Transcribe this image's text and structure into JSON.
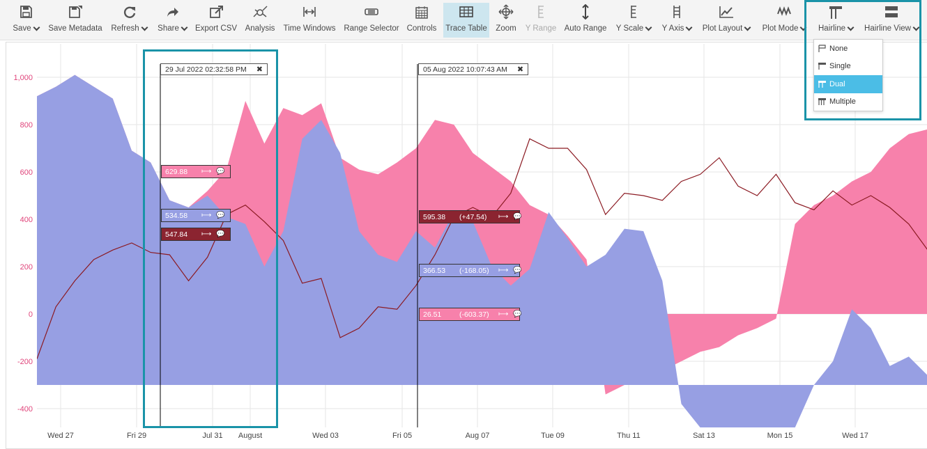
{
  "toolbar": {
    "buttons": [
      {
        "id": "save",
        "label": "Save",
        "icon": "floppy-icon",
        "caret": true
      },
      {
        "id": "save-metadata",
        "label": "Save Metadata",
        "icon": "floppy-tag-icon",
        "caret": false
      },
      {
        "id": "refresh",
        "label": "Refresh",
        "icon": "refresh-icon",
        "caret": true
      },
      {
        "id": "share",
        "label": "Share",
        "icon": "share-arrow-icon",
        "caret": true
      },
      {
        "id": "export-csv",
        "label": "Export CSV",
        "icon": "export-icon",
        "caret": false
      },
      {
        "id": "analysis",
        "label": "Analysis",
        "icon": "analysis-icon",
        "caret": false
      },
      {
        "id": "time-windows",
        "label": "Time Windows",
        "icon": "time-windows-icon",
        "caret": false
      },
      {
        "id": "range-selector",
        "label": "Range Selector",
        "icon": "range-selector-icon",
        "caret": false
      },
      {
        "id": "controls",
        "label": "Controls",
        "icon": "calendar-icon",
        "caret": false
      },
      {
        "id": "trace-table",
        "label": "Trace Table",
        "icon": "table-icon",
        "caret": false,
        "active": true
      },
      {
        "id": "zoom",
        "label": "Zoom",
        "icon": "zoom-move-icon",
        "caret": false
      },
      {
        "id": "y-range",
        "label": "Y Range",
        "icon": "y-range-icon",
        "caret": false,
        "disabled": true
      },
      {
        "id": "auto-range",
        "label": "Auto Range",
        "icon": "auto-range-icon",
        "caret": false
      },
      {
        "id": "y-scale",
        "label": "Y Scale",
        "icon": "y-scale-icon",
        "caret": true
      },
      {
        "id": "y-axis",
        "label": "Y Axis",
        "icon": "y-axis-icon",
        "caret": true
      },
      {
        "id": "plot-layout",
        "label": "Plot Layout",
        "icon": "plot-layout-icon",
        "caret": true
      },
      {
        "id": "plot-mode",
        "label": "Plot Mode",
        "icon": "plot-mode-icon",
        "caret": true
      },
      {
        "id": "hairline",
        "label": "Hairline",
        "icon": "hairline-icon",
        "caret": true
      },
      {
        "id": "hairline-view",
        "label": "Hairline View",
        "icon": "hairline-view-icon",
        "caret": true
      }
    ]
  },
  "hairline_menu": {
    "items": [
      {
        "label": "None",
        "icon": "hairline-none-icon",
        "selected": false
      },
      {
        "label": "Single",
        "icon": "hairline-single-icon",
        "selected": false
      },
      {
        "label": "Dual",
        "icon": "hairline-dual-icon",
        "selected": true
      },
      {
        "label": "Multiple",
        "icon": "hairline-multiple-icon",
        "selected": false
      }
    ]
  },
  "hairlines": {
    "first": {
      "timestamp": "29 Jul 2022 02:32:58 PM",
      "values": [
        {
          "value": "629.88",
          "series": "pink"
        },
        {
          "value": "534.58",
          "series": "blue"
        },
        {
          "value": "547.84",
          "series": "red"
        }
      ]
    },
    "second": {
      "timestamp": "05 Aug 2022 10:07:43 AM",
      "values": [
        {
          "value": "595.38",
          "delta": "(+47.54)",
          "series": "red"
        },
        {
          "value": "366.53",
          "delta": "(-168.05)",
          "series": "blue"
        },
        {
          "value": "26.51",
          "delta": "(-603.37)",
          "series": "pink"
        }
      ]
    }
  },
  "colors": {
    "pink": "#f781ab",
    "blue": "#979fe3",
    "red": "#8b1a22",
    "y_tick": "#e0457b",
    "highlight": "#1a93a8",
    "menu_selected": "#4bbde6"
  },
  "chart_data": {
    "type": "area",
    "ylim": [
      -480,
      1100
    ],
    "y_ticks": [
      "1,000",
      "800",
      "600",
      "400",
      "200",
      "0",
      "-200",
      "-400"
    ],
    "x_tick_labels": [
      "Wed 27",
      "Fri 29",
      "Jul 31",
      "August",
      "Wed 03",
      "Fri 05",
      "Aug 07",
      "Tue 09",
      "Thu 11",
      "Sat 13",
      "Mon 15",
      "Wed 17"
    ],
    "x": [
      0,
      0.5,
      1,
      1.5,
      2,
      2.5,
      3,
      3.5,
      4,
      4.5,
      5,
      5.5,
      6,
      6.5,
      7,
      7.5,
      8,
      8.5,
      9,
      9.5,
      10,
      10.5,
      11,
      11.5,
      12,
      12.5,
      13,
      13.5,
      14,
      14.5,
      15,
      15.5,
      16,
      16.5,
      17,
      17.5,
      18,
      18.5,
      19,
      19.5,
      20,
      20.5,
      21,
      21.5,
      22,
      22.5,
      23,
      23.5
    ],
    "series": [
      {
        "values": [
          920,
          960,
          1010,
          960,
          910,
          690,
          640,
          480,
          450,
          520,
          610,
          900,
          720,
          870,
          840,
          890,
          660,
          610,
          590,
          640,
          700,
          820,
          800,
          680,
          620,
          560,
          460,
          420,
          330,
          230,
          -340,
          -300,
          -280,
          -240,
          -200,
          -160,
          -140,
          -90,
          -60,
          -20,
          380,
          460,
          500,
          560,
          600,
          700,
          760,
          780
        ]
      },
      {
        "values": [
          920,
          960,
          1010,
          960,
          910,
          690,
          640,
          480,
          450,
          500,
          410,
          380,
          200,
          350,
          740,
          820,
          680,
          350,
          250,
          220,
          350,
          280,
          430,
          390,
          200,
          120,
          190,
          430,
          320,
          200,
          250,
          360,
          350,
          140,
          -380,
          -480,
          -480,
          -480,
          -480,
          -480,
          -480,
          -300,
          -200,
          20,
          -60,
          -220,
          -180,
          -260
        ]
      },
      {
        "values": [
          -190,
          30,
          140,
          230,
          270,
          300,
          260,
          250,
          140,
          240,
          420,
          460,
          390,
          310,
          130,
          150,
          -100,
          -60,
          30,
          20,
          120,
          250,
          410,
          450,
          410,
          510,
          740,
          700,
          700,
          610,
          420,
          510,
          500,
          480,
          560,
          590,
          660,
          540,
          500,
          590,
          470,
          440,
          520,
          460,
          500,
          450,
          380,
          270
        ]
      }
    ]
  }
}
